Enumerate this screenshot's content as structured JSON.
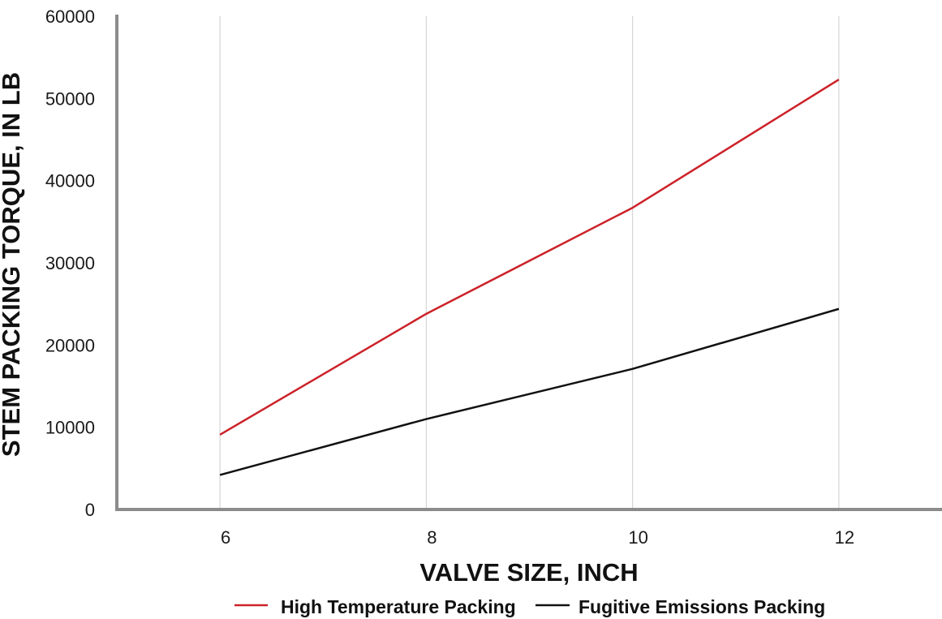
{
  "chart_data": {
    "type": "line",
    "title": "",
    "xlabel": "VALVE SIZE, INCH",
    "ylabel": "STEM  PACKING TORQUE, IN LB",
    "x": [
      6,
      8,
      10,
      12
    ],
    "x_tick_labels": [
      "6",
      "8",
      "10",
      "12"
    ],
    "ylim": [
      0,
      60000
    ],
    "y_ticks": [
      0,
      10000,
      20000,
      30000,
      40000,
      50000,
      60000
    ],
    "y_tick_labels": [
      "0",
      "10000",
      "20000",
      "30000",
      "40000",
      "50000",
      "60000"
    ],
    "grid": "vertical",
    "legend_position": "bottom",
    "series": [
      {
        "name": "High Temperature Packing",
        "color": "#cc2229",
        "values": [
          9100,
          23800,
          36700,
          52300
        ]
      },
      {
        "name": "Fugitive Emissions Packing",
        "color": "#111111",
        "values": [
          4200,
          11000,
          17100,
          24400
        ]
      }
    ]
  },
  "colors": {
    "axis": "#8c8c8c",
    "grid": "#d6d6d6"
  }
}
